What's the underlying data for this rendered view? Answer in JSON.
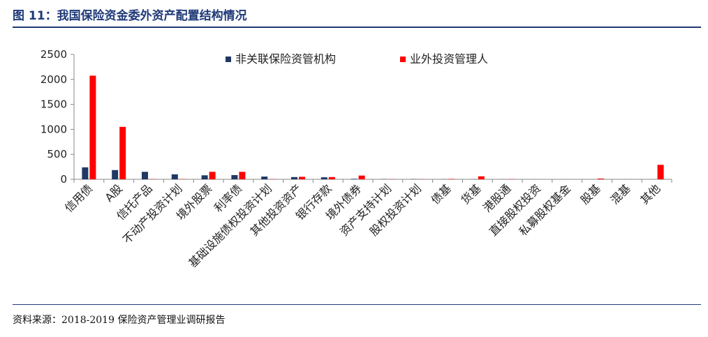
{
  "header": {
    "figure_title": "图 11：我国保险资金委外资产配置结构情况"
  },
  "footer": {
    "source_text": "资料来源：2018-2019 保险资产管理业调研报告"
  },
  "colors": {
    "rule": "#1f3a78",
    "series_1": "#1f3864",
    "series_2": "#ff0000"
  },
  "chart_data": {
    "type": "bar",
    "title": "",
    "xlabel": "",
    "ylabel": "",
    "ylim": [
      0,
      2500
    ],
    "yticks": [
      0,
      500,
      1000,
      1500,
      2000,
      2500
    ],
    "grid": false,
    "legend_position": "top",
    "categories": [
      "信用债",
      "A股",
      "信托产品",
      "不动产投资计划",
      "境外股票",
      "利率债",
      "基础设施债权投资计划",
      "其他投资资产",
      "银行存款",
      "境外债券",
      "资产支持计划",
      "股权投资计划",
      "债基",
      "货基",
      "港股通",
      "直接股权投资",
      "私募股权基金",
      "股基",
      "混基",
      "其他"
    ],
    "series": [
      {
        "name": "非关联保险资管机构",
        "color": "#1f3864",
        "values": [
          240,
          185,
          150,
          100,
          80,
          85,
          55,
          45,
          40,
          10,
          5,
          5,
          3,
          3,
          2,
          1,
          1,
          1,
          1,
          1
        ]
      },
      {
        "name": "业外投资管理人",
        "color": "#ff0000",
        "values": [
          2075,
          1050,
          5,
          5,
          150,
          150,
          5,
          50,
          45,
          75,
          3,
          3,
          8,
          60,
          5,
          1,
          1,
          15,
          1,
          290
        ]
      }
    ]
  }
}
